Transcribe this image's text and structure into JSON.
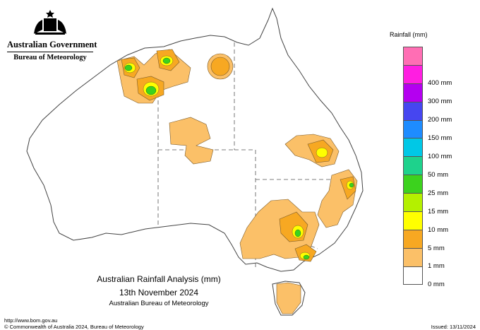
{
  "header": {
    "government": "Australian Government",
    "bureau": "Bureau of Meteorology"
  },
  "map": {
    "title": "Australian Rainfall Analysis (mm)",
    "date": "13th November 2024",
    "credit": "Australian Bureau of Meteorology"
  },
  "legend": {
    "title": "Rainfall (mm)",
    "items": [
      {
        "label": "",
        "color": "#ff6eb4"
      },
      {
        "label": "400 mm",
        "color": "#ff1ee1"
      },
      {
        "label": "300 mm",
        "color": "#b400f0"
      },
      {
        "label": "200 mm",
        "color": "#4646f0"
      },
      {
        "label": "150 mm",
        "color": "#1e8cff"
      },
      {
        "label": "100 mm",
        "color": "#00c8e6"
      },
      {
        "label": "50 mm",
        "color": "#1ed28c"
      },
      {
        "label": "25 mm",
        "color": "#3cd21e"
      },
      {
        "label": "15 mm",
        "color": "#b4f000"
      },
      {
        "label": "10 mm",
        "color": "#ffff00"
      },
      {
        "label": "5 mm",
        "color": "#f7a822"
      },
      {
        "label": "1 mm",
        "color": "#fbc068"
      },
      {
        "label": "0 mm",
        "color": "#ffffff"
      }
    ]
  },
  "footer": {
    "url": "http://www.bom.gov.au",
    "copyright": "© Commonwealth of Australia 2024, Bureau of Meteorology",
    "issued": "Issued: 13/11/2024"
  }
}
